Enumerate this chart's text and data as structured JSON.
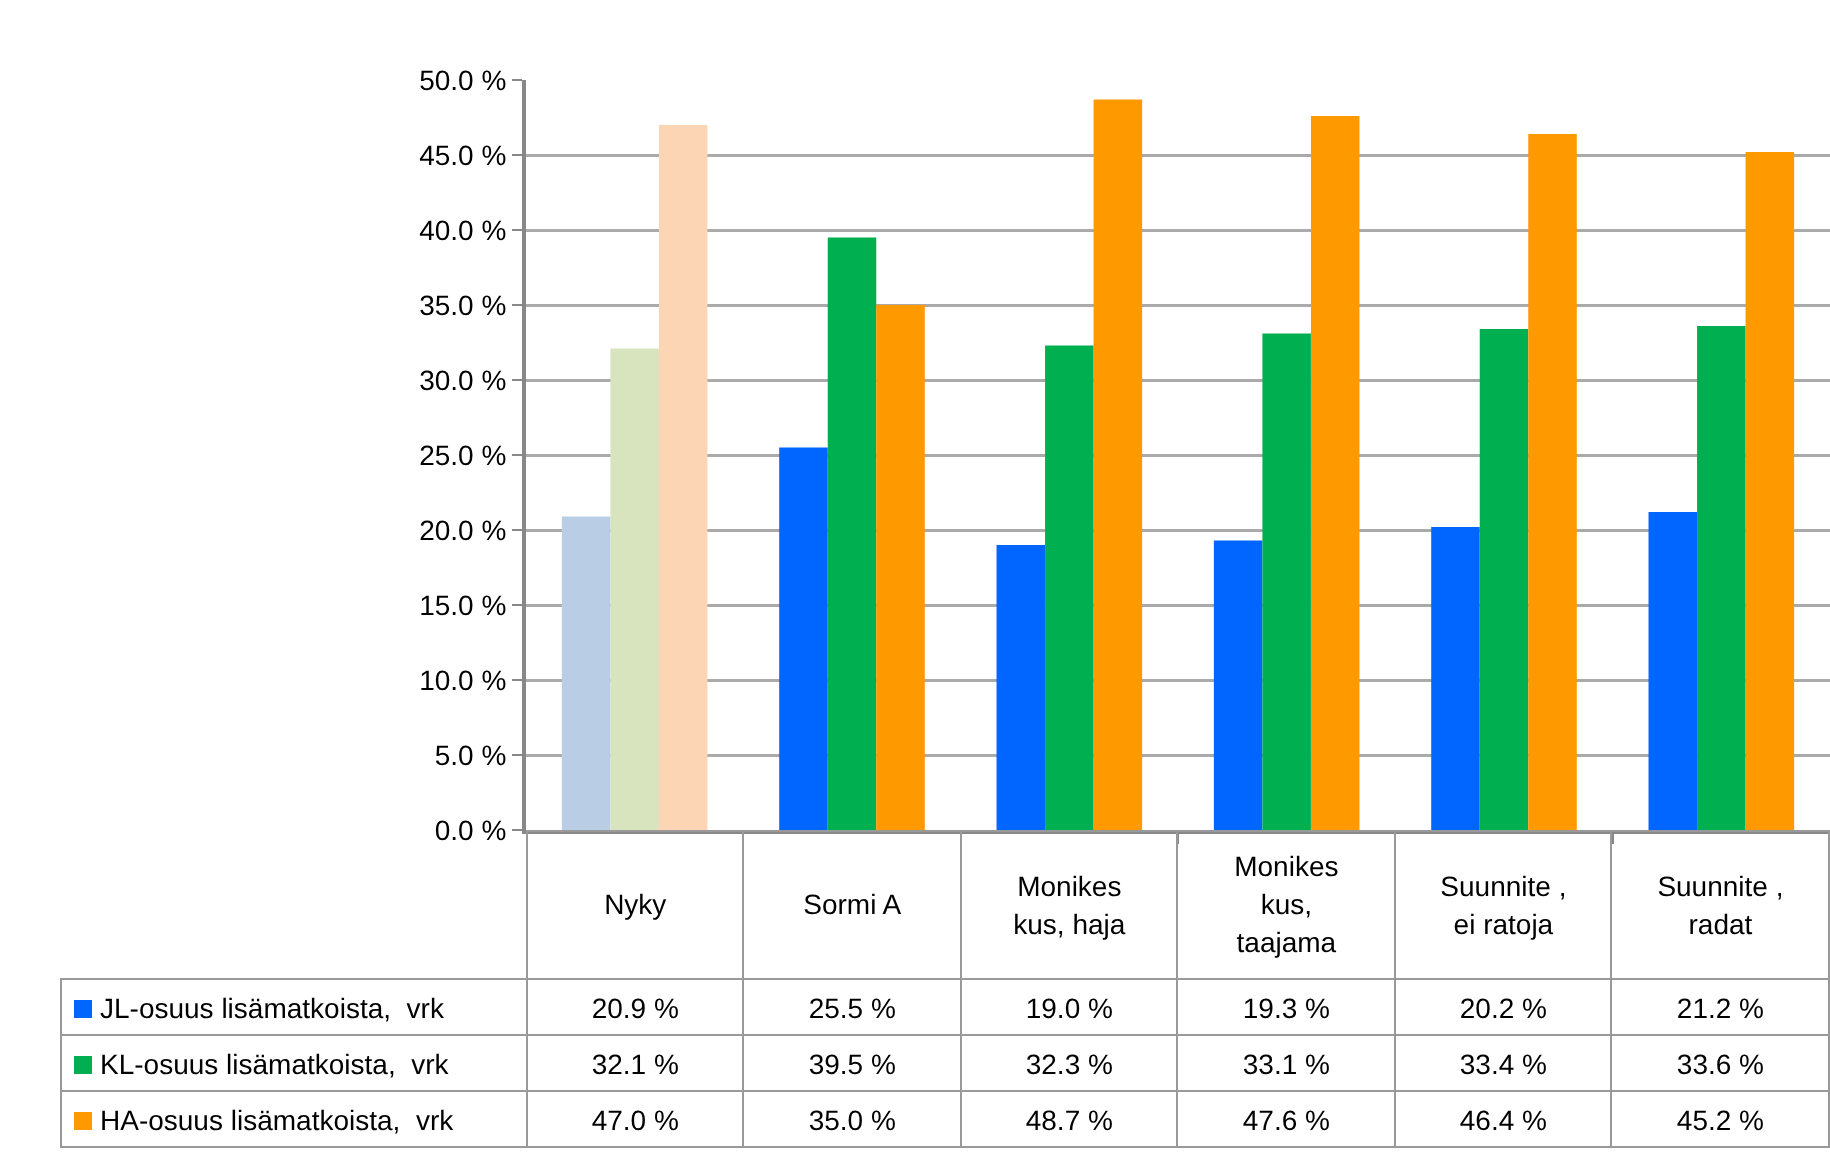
{
  "chart_data": {
    "type": "bar",
    "categories": [
      "Nyky",
      "Sormi A",
      "Monikes kus, haja",
      "Monikes kus, taajama",
      "Suunnite , ei ratoja",
      "Suunnite , radat"
    ],
    "series": [
      {
        "name": "JL-osuus lisämatkoista,  vrk",
        "color": "#0066ff",
        "colors": [
          "#b9cde5",
          "#0066ff",
          "#0066ff",
          "#0066ff",
          "#0066ff",
          "#0066ff"
        ],
        "values": [
          20.9,
          25.5,
          19.0,
          19.3,
          20.2,
          21.2
        ],
        "value_labels": [
          "20.9 %",
          "25.5 %",
          "19.0 %",
          "19.3 %",
          "20.2 %",
          "21.2 %"
        ]
      },
      {
        "name": "KL-osuus lisämatkoista,  vrk",
        "color": "#00b050",
        "colors": [
          "#d7e4bd",
          "#00b050",
          "#00b050",
          "#00b050",
          "#00b050",
          "#00b050"
        ],
        "values": [
          32.1,
          39.5,
          32.3,
          33.1,
          33.4,
          33.6
        ],
        "value_labels": [
          "32.1 %",
          "39.5 %",
          "32.3 %",
          "33.1 %",
          "33.4 %",
          "33.6 %"
        ]
      },
      {
        "name": "HA-osuus lisämatkoista,  vrk",
        "color": "#ff9900",
        "colors": [
          "#fcd5b5",
          "#ff9900",
          "#ff9900",
          "#ff9900",
          "#ff9900",
          "#ff9900"
        ],
        "values": [
          47.0,
          35.0,
          48.7,
          47.6,
          46.4,
          45.2
        ],
        "value_labels": [
          "47.0 %",
          "35.0 %",
          "48.7 %",
          "47.6 %",
          "46.4 %",
          "45.2 %"
        ]
      }
    ],
    "ylim": [
      0,
      50
    ],
    "yticks": [
      {
        "value": 0,
        "label": "0.0 %"
      },
      {
        "value": 5,
        "label": "5.0 %"
      },
      {
        "value": 10,
        "label": "10.0 %"
      },
      {
        "value": 15,
        "label": "15.0 %"
      },
      {
        "value": 20,
        "label": "20.0 %"
      },
      {
        "value": 25,
        "label": "25.0 %"
      },
      {
        "value": 30,
        "label": "30.0 %"
      },
      {
        "value": 35,
        "label": "35.0 %"
      },
      {
        "value": 40,
        "label": "40.0 %"
      },
      {
        "value": 45,
        "label": "45.0 %"
      },
      {
        "value": 50,
        "label": "50.0 %"
      }
    ],
    "grid": "y",
    "legend": "bottom left"
  }
}
